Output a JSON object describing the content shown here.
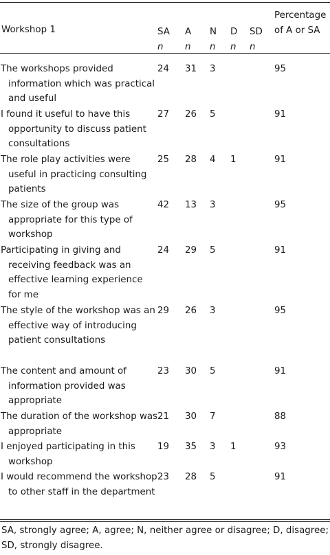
{
  "table": {
    "header": {
      "title": "Workshop 1",
      "columns": [
        {
          "label": "SA",
          "sub": "n"
        },
        {
          "label": "A",
          "sub": "n"
        },
        {
          "label": "N",
          "sub": "n"
        },
        {
          "label": "D",
          "sub": "n"
        },
        {
          "label": "SD",
          "sub": "n"
        }
      ],
      "pct_label_line1": "Percentage",
      "pct_label_line2": "of A or SA"
    },
    "rows": [
      {
        "statement": "The workshops provided information which was practical and useful",
        "sa": "24",
        "a": "31",
        "n": "3",
        "d": "",
        "sd": "",
        "pct": "95"
      },
      {
        "statement": "I found it useful to have this opportunity to discuss patient consultations",
        "sa": "27",
        "a": "26",
        "n": "5",
        "d": "",
        "sd": "",
        "pct": "91"
      },
      {
        "statement": "The role play activities were useful in practicing consulting patients",
        "sa": "25",
        "a": "28",
        "n": "4",
        "d": "1",
        "sd": "",
        "pct": "91"
      },
      {
        "statement": "The size of the group was appropriate for this type of workshop",
        "sa": "42",
        "a": "13",
        "n": "3",
        "d": "",
        "sd": "",
        "pct": "95"
      },
      {
        "statement": "Participating in giving and receiving feedback was an effective learning experience for me",
        "sa": "24",
        "a": "29",
        "n": "5",
        "d": "",
        "sd": "",
        "pct": "91"
      },
      {
        "statement": "The style of the workshop was an effective way of introducing patient consultations",
        "sa": "29",
        "a": "26",
        "n": "3",
        "d": "",
        "sd": "",
        "pct": "95"
      },
      {
        "statement": "The content and amount of information provided was appropriate",
        "sa": "23",
        "a": "30",
        "n": "5",
        "d": "",
        "sd": "",
        "pct": "91"
      },
      {
        "statement": "The duration of the workshop was appropriate",
        "sa": "21",
        "a": "30",
        "n": "7",
        "d": "",
        "sd": "",
        "pct": "88"
      },
      {
        "statement": "I enjoyed participating in this workshop",
        "sa": "19",
        "a": "35",
        "n": "3",
        "d": "1",
        "sd": "",
        "pct": "93"
      },
      {
        "statement": "I would recommend the workshop to other staff in the department",
        "sa": "23",
        "a": "28",
        "n": "5",
        "d": "",
        "sd": "",
        "pct": "91"
      }
    ]
  },
  "footnote": "SA, strongly agree; A, agree; N, neither agree or disagree; D, disagree; SD, strongly disagree."
}
